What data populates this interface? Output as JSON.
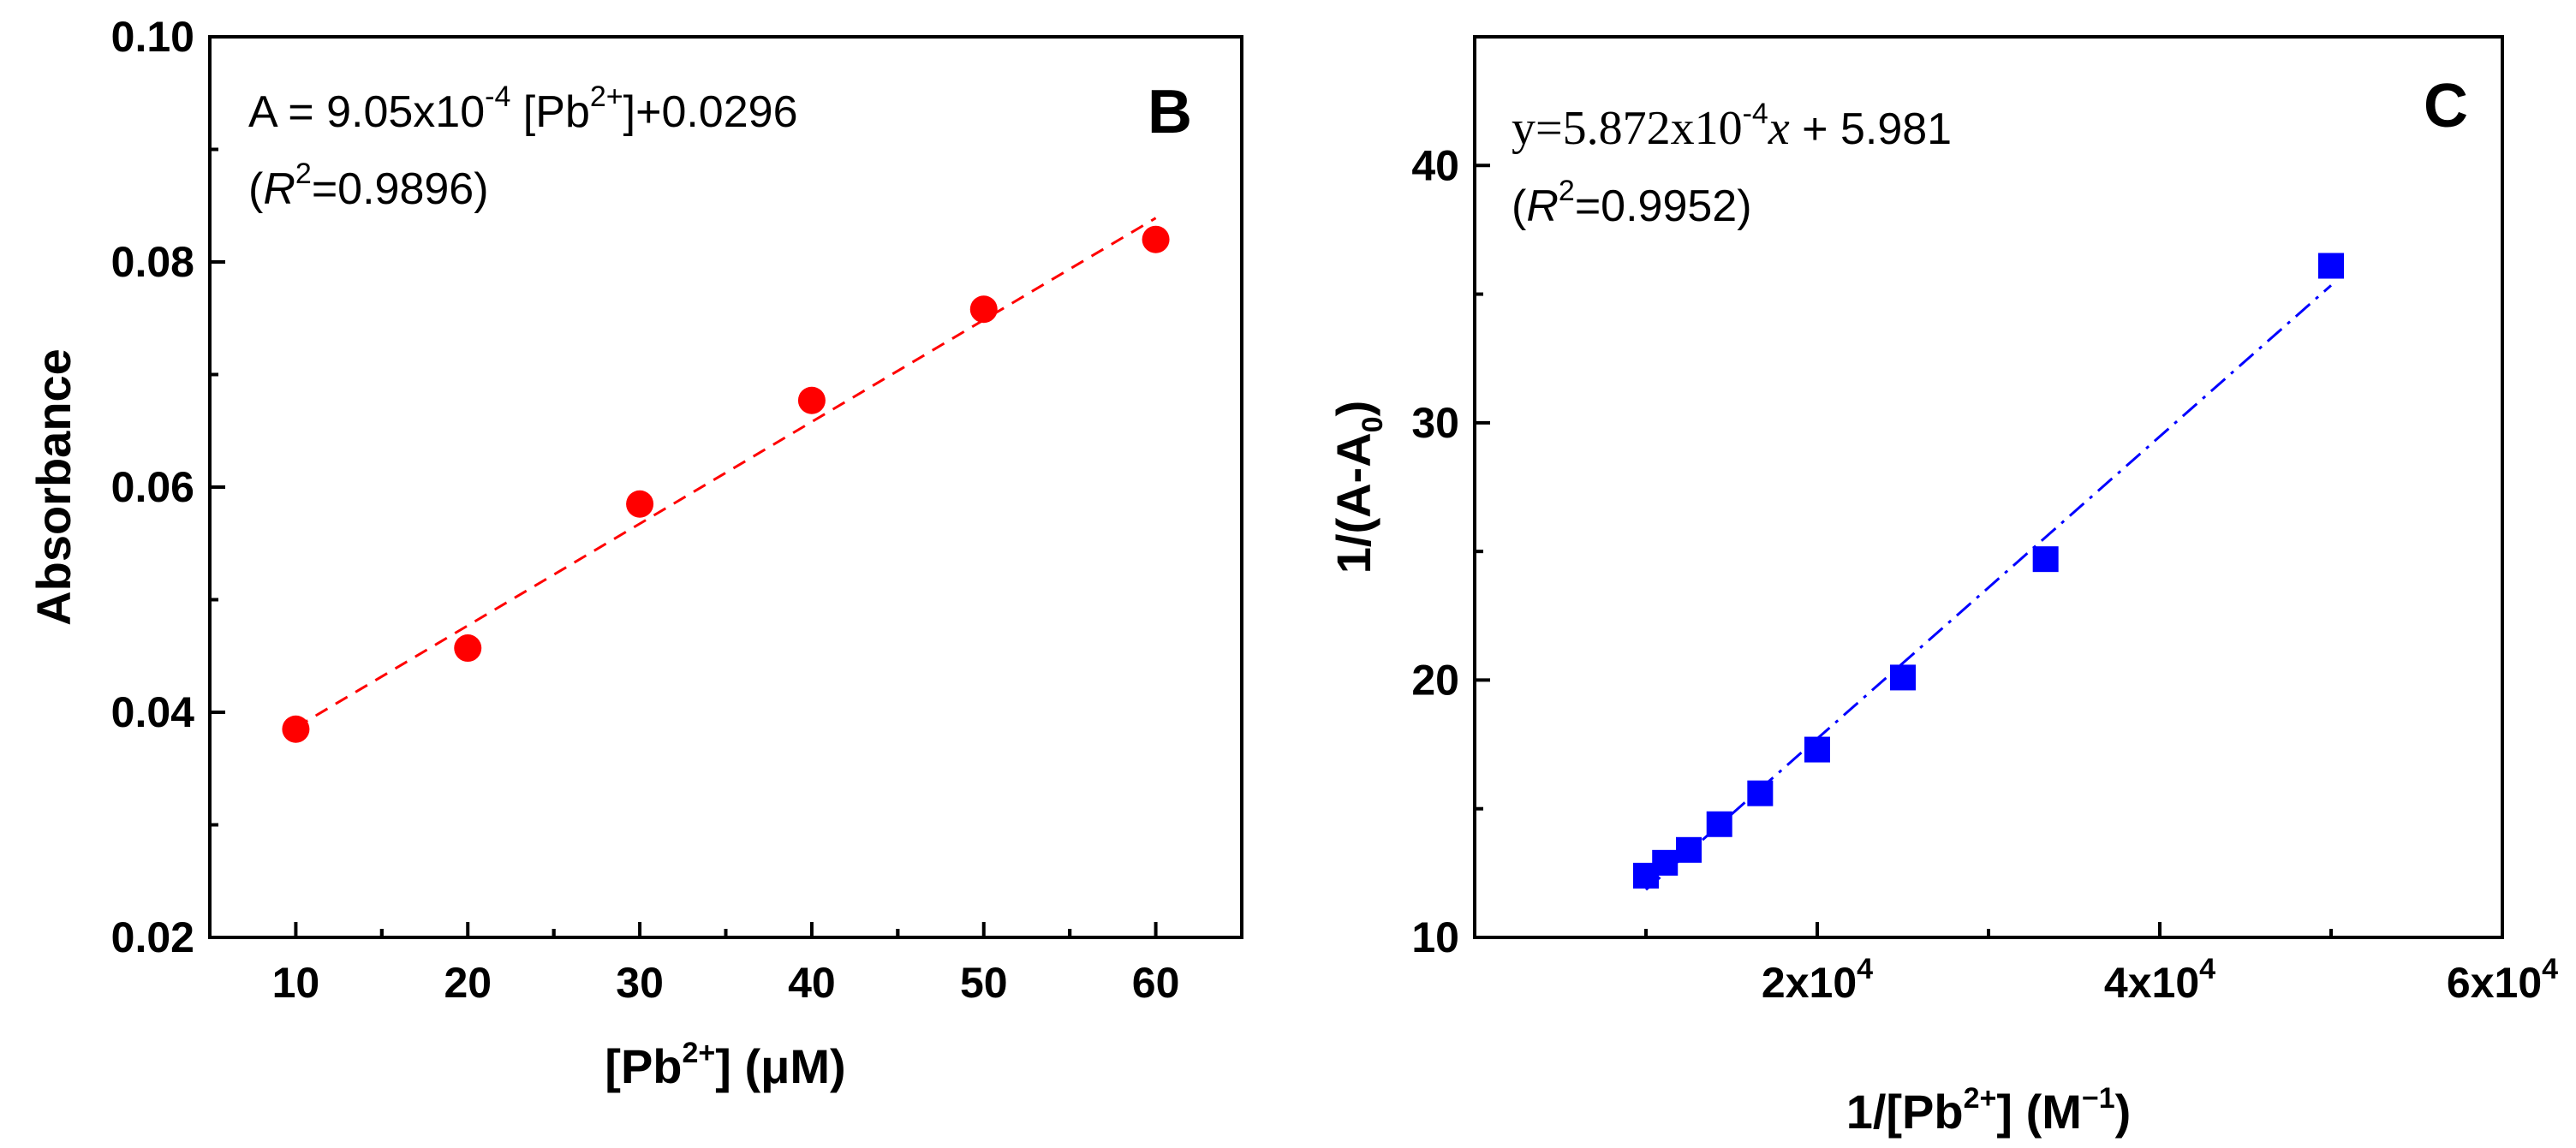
{
  "chart_data": [
    {
      "type": "scatter",
      "panel": "B",
      "equation": {
        "prefix": "A = 9.05x10",
        "exp": "-4",
        "mid": " [Pb",
        "ion": "2+",
        "suffix": "]+0.0296"
      },
      "r2": {
        "open": "(",
        "r": "R",
        "sq": "2",
        "rest": "=0.9896)"
      },
      "xlabel": {
        "pre": "[Pb",
        "sup": "2+",
        "post": "] (μM)"
      },
      "ylabel": "Absorbance",
      "xlim": [
        5,
        65
      ],
      "ylim": [
        0.02,
        0.1
      ],
      "xticks": [
        10,
        20,
        30,
        40,
        50,
        60
      ],
      "xtick_labels": [
        "10",
        "20",
        "30",
        "40",
        "50",
        "60"
      ],
      "yticks": [
        0.02,
        0.04,
        0.06,
        0.08,
        0.1
      ],
      "ytick_labels": [
        "0.02",
        "0.04",
        "0.06",
        "0.08",
        "0.10"
      ],
      "series": [
        {
          "name": "Absorbance",
          "marker": "circle",
          "color": "#ff0000",
          "x": [
            10,
            20,
            30,
            40,
            50,
            60
          ],
          "y": [
            0.0385,
            0.0457,
            0.0585,
            0.0677,
            0.0758,
            0.082
          ]
        }
      ],
      "fit": {
        "style": "dashed",
        "color": "#ff0000",
        "slope": 0.000905,
        "intercept": 0.0296,
        "x_range": [
          10,
          60
        ]
      }
    },
    {
      "type": "scatter",
      "panel": "C",
      "equation": {
        "prefix": "y=5.872x10",
        "exp": "-4",
        "x": "x",
        "suffix": " + 5.981"
      },
      "r2": {
        "open": "(",
        "r": "R",
        "sq": "2",
        "rest": "=0.9952)"
      },
      "xlabel": {
        "pre": "1/[Pb",
        "sup": "2+",
        "mid": "] (M",
        "sup2": "−1",
        "post": ")"
      },
      "ylabel": {
        "pre": "1/(A-A",
        "sub": "0",
        "post": ")"
      },
      "xlim": [
        0,
        60000
      ],
      "ylim": [
        10,
        45
      ],
      "xticks": [
        20000,
        40000,
        60000
      ],
      "xtick_labels": [
        {
          "base": "2x10",
          "exp": "4"
        },
        {
          "base": "4x10",
          "exp": "4"
        },
        {
          "base": "6x10",
          "exp": "4"
        }
      ],
      "yticks": [
        10,
        20,
        30,
        40
      ],
      "ytick_labels": [
        "10",
        "20",
        "30",
        "40"
      ],
      "series": [
        {
          "name": "1/(A-A0)",
          "marker": "square",
          "color": "#0000ff",
          "x": [
            10000,
            11111,
            12500,
            14286,
            16667,
            20000,
            25000,
            33333,
            50000
          ],
          "y": [
            12.4,
            12.9,
            13.4,
            14.4,
            15.6,
            17.3,
            20.1,
            24.7,
            36.1
          ]
        }
      ],
      "fit": {
        "style": "dash-dot",
        "color": "#0000ff",
        "slope": 0.0005872,
        "intercept": 5.981,
        "x_range": [
          10000,
          50000
        ]
      }
    }
  ]
}
